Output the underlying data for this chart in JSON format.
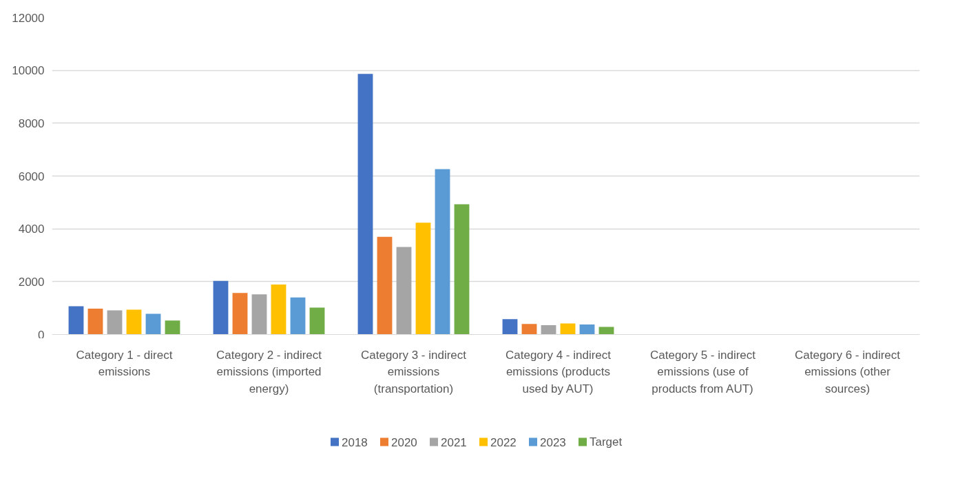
{
  "chart_data": {
    "type": "bar",
    "categories": [
      "Category 1 - direct emissions",
      "Category 2 - indirect emissions (imported energy)",
      "Category 3 - indirect emissions (transportation)",
      "Category 4 - indirect emissions (products used by AUT)",
      "Category 5 - indirect emissions (use of products from AUT)",
      "Category 6 - indirect emissions (other sources)"
    ],
    "series": [
      {
        "name": "2018",
        "color": "#4472c4",
        "values": [
          1070,
          2030,
          9870,
          580,
          0,
          0
        ]
      },
      {
        "name": "2020",
        "color": "#ed7d31",
        "values": [
          980,
          1570,
          3700,
          400,
          0,
          0
        ]
      },
      {
        "name": "2021",
        "color": "#a5a5a5",
        "values": [
          910,
          1520,
          3310,
          350,
          0,
          0
        ]
      },
      {
        "name": "2022",
        "color": "#ffc000",
        "values": [
          940,
          1890,
          4230,
          420,
          0,
          0
        ]
      },
      {
        "name": "2023",
        "color": "#5b9bd5",
        "values": [
          780,
          1400,
          6260,
          380,
          0,
          0
        ]
      },
      {
        "name": "Target",
        "color": "#70ad47",
        "values": [
          530,
          1020,
          4930,
          290,
          0,
          0
        ]
      }
    ],
    "ylim": [
      0,
      12000
    ],
    "yticks": [
      0,
      2000,
      4000,
      6000,
      8000,
      10000,
      12000
    ],
    "grid": "y",
    "legend": "bottom"
  }
}
